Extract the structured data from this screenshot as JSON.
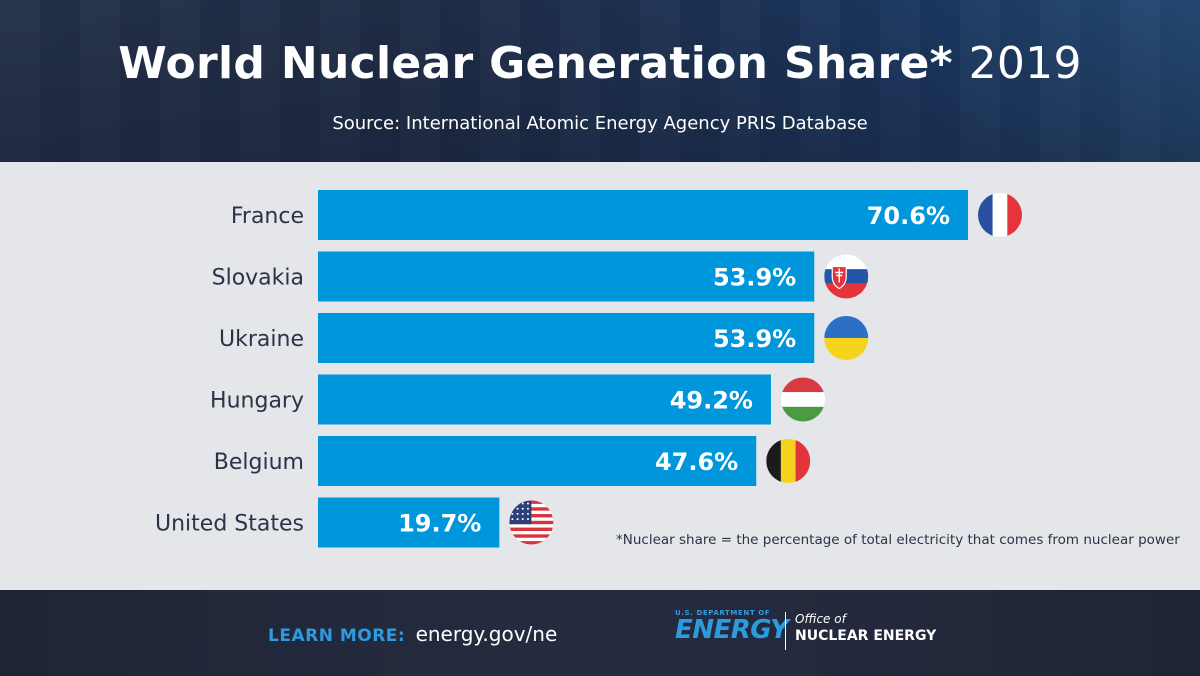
{
  "header": {
    "title": "World Nuclear Generation Share*",
    "title_year": "2019",
    "subtitle": "Source: International Atomic Energy Agency PRIS Database"
  },
  "footnote": "*Nuclear share = the percentage of total electricity that comes from nuclear power",
  "footer": {
    "learn_more_label": "LEARN MORE:",
    "learn_more_url": "energy.gov/ne",
    "doe_small": "U.S. DEPARTMENT OF",
    "doe_big": "ENERGY",
    "office_line1": "Office of",
    "office_line2": "NUCLEAR ENERGY"
  },
  "colors": {
    "bar": "#0096dc",
    "label": "#2b3346",
    "value_text": "#ffffff"
  },
  "chart_data": {
    "type": "bar",
    "orientation": "horizontal",
    "categories": [
      "France",
      "Slovakia",
      "Ukraine",
      "Hungary",
      "Belgium",
      "United States"
    ],
    "values": [
      70.6,
      53.9,
      53.9,
      49.2,
      47.6,
      19.7
    ],
    "value_labels": [
      "70.6%",
      "53.9%",
      "53.9%",
      "49.2%",
      "47.6%",
      "19.7%"
    ],
    "flags": [
      "france-flag",
      "slovakia-flag",
      "ukraine-flag",
      "hungary-flag",
      "belgium-flag",
      "usa-flag"
    ],
    "xlim": [
      0,
      70.6
    ],
    "grid": false,
    "legend": "none"
  }
}
